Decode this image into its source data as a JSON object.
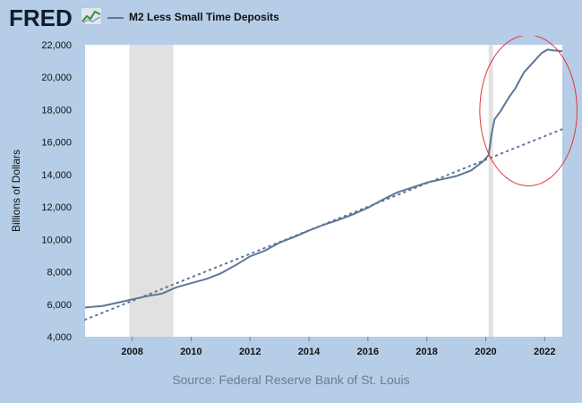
{
  "header": {
    "logo_text": "FRED",
    "logo_icon": "fred-line-chart-icon"
  },
  "footer": {
    "source": "Source: Federal Reserve Bank of St. Louis"
  },
  "colors": {
    "series": "#5d7797",
    "trend": "#5d7797",
    "recession": "#e1e1e1",
    "highlight": "#e8343a",
    "background": "#b5cde7",
    "plot": "#ffffff"
  },
  "chart_data": {
    "type": "line",
    "title": "",
    "xlabel": "",
    "ylabel": "Billions of Dollars",
    "xlim": [
      2006.4,
      2022.6
    ],
    "ylim": [
      4000,
      22000
    ],
    "x_ticks": [
      2008,
      2010,
      2012,
      2014,
      2016,
      2018,
      2020,
      2022
    ],
    "x_tick_labels": [
      "2008",
      "2010",
      "2012",
      "2014",
      "2016",
      "2018",
      "2020",
      "2022"
    ],
    "y_ticks": [
      4000,
      6000,
      8000,
      10000,
      12000,
      14000,
      16000,
      18000,
      20000,
      22000
    ],
    "y_tick_labels": [
      "4,000",
      "6,000",
      "8,000",
      "10,000",
      "12,000",
      "14,000",
      "16,000",
      "18,000",
      "20,000",
      "22,000"
    ],
    "grid": false,
    "legend": "top-left",
    "recessions": [
      [
        2007.9,
        2009.4
      ],
      [
        2020.1,
        2020.25
      ]
    ],
    "series": [
      {
        "name": "M2 Less Small Time Deposits",
        "style": "solid",
        "x": [
          2006.4,
          2007.0,
          2007.5,
          2008.0,
          2008.5,
          2009.0,
          2009.5,
          2010.0,
          2010.5,
          2011.0,
          2011.5,
          2012.0,
          2012.5,
          2013.0,
          2013.5,
          2014.0,
          2014.5,
          2015.0,
          2015.5,
          2016.0,
          2016.5,
          2017.0,
          2017.5,
          2018.0,
          2018.5,
          2019.0,
          2019.5,
          2019.9,
          2020.1,
          2020.2,
          2020.3,
          2020.5,
          2020.8,
          2021.0,
          2021.3,
          2021.6,
          2021.9,
          2022.1,
          2022.3,
          2022.6
        ],
        "y": [
          5800,
          5900,
          6100,
          6300,
          6500,
          6650,
          7050,
          7300,
          7550,
          7900,
          8400,
          8950,
          9300,
          9800,
          10150,
          10550,
          10900,
          11200,
          11550,
          11950,
          12450,
          12900,
          13200,
          13500,
          13700,
          13900,
          14250,
          14800,
          15200,
          16500,
          17400,
          17900,
          18800,
          19300,
          20300,
          20900,
          21500,
          21700,
          21650,
          21600
        ]
      },
      {
        "name": "",
        "style": "dotted",
        "x": [
          2006.4,
          2022.6
        ],
        "y": [
          5050,
          16800
        ]
      }
    ],
    "annotations": [
      {
        "type": "ellipse",
        "x_range": [
          2019.8,
          2023.1
        ],
        "y_range": [
          13300,
          22600
        ]
      }
    ]
  }
}
